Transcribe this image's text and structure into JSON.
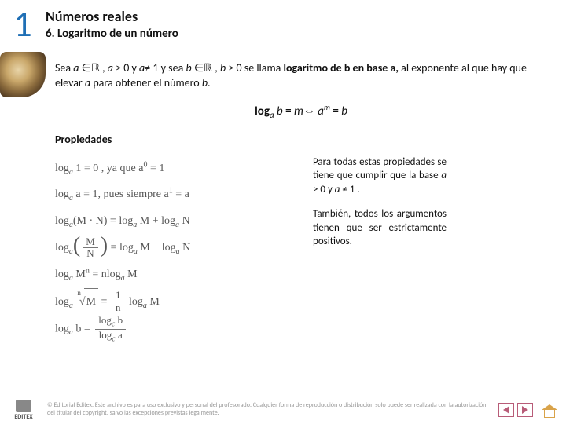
{
  "header": {
    "chapter_number": "1",
    "title": "Números reales",
    "subtitle": "6. Logaritmo de un número"
  },
  "intro": {
    "t1": "Sea ",
    "a": "a",
    "in1": " ∈ℝ , ",
    "cond_a": "a",
    "t2": " > 0 y ",
    "cond_a2": "a",
    "t3": "≠ 1 y sea ",
    "b": "b",
    "in2": "  ∈ℝ  , ",
    "cond_b": "b",
    "t4": " > 0 se llama ",
    "bold": "logaritmo de b en base a,",
    "t5": " al exponente al que hay que elevar ",
    "a2": "a",
    "t6": " para obtener el número ",
    "b2": "b",
    "t7": "."
  },
  "formula": {
    "log": "log",
    "base": "a",
    "sp1": " ",
    "arg": "b",
    "eq1": " = ",
    "m": "m",
    "iff": "⇔ ",
    "a": "a",
    "exp": "m",
    "eq2": " = ",
    "res": "b"
  },
  "properties": {
    "heading": "Propiedades",
    "left": {
      "r1_a": "log",
      "r1_sub": "a",
      "r1_b": " 1 = 0 , ya que  ",
      "r1_c": "a",
      "r1_sup0": "0",
      "r1_d": " = 1",
      "r2_a": "log",
      "r2_sub": "a",
      "r2_b": " ",
      "r2_c": "a",
      "r2_d": " = 1, pues siempre  ",
      "r2_e": "a",
      "r2_sup1": "1",
      "r2_f": " = ",
      "r2_g": "a",
      "r3_a": "log",
      "r3_sub": "a",
      "r3_b": "(M · N) = log",
      "r3_sub2": "a",
      "r3_c": " M + log",
      "r3_sub3": "a",
      "r3_d": " N",
      "r4_a": "log",
      "r4_sub": "a",
      "r4_num": "M",
      "r4_den": "N",
      "r4_b": " = log",
      "r4_sub2": "a",
      "r4_c": " M − log",
      "r4_sub3": "a",
      "r4_d": " N",
      "r5_a": "log",
      "r5_sub": "a",
      "r5_b": " M",
      "r5_sup": "n",
      "r5_c": " = ",
      "r5_d": "n",
      "r5_e": "log",
      "r5_sub2": "a",
      "r5_f": " M",
      "r6_a": "log",
      "r6_sub": "a",
      "r6_idx": "n",
      "r6_rad": "M",
      "r6_b": " = ",
      "r6_num": "1",
      "r6_den": "n",
      "r6_c": " log",
      "r6_sub2": "a",
      "r6_d": " M",
      "r7_a": "log",
      "r7_sub": "a",
      "r7_b": " b = ",
      "r7_num": "log",
      "r7_numsub": "c",
      "r7_numb": " b",
      "r7_den": "log",
      "r7_densub": "c",
      "r7_denb": " a"
    },
    "right": {
      "p1a": "Para todas estas propiedades se tiene que cumplir que la base ",
      "p1b": "a",
      "p1c": " > 0 y ",
      "p1d": "a",
      "p1e": " ≠ 1 .",
      "p2": "También, todos los argumentos tienen que ser estrictamente positivos."
    }
  },
  "footer": {
    "logo": "EDITEX",
    "copyright": "© Editorial Editex. Este archivo es para uso exclusivo y personal del profesorado. Cualquier forma de reproducción o distribución solo puede ser realizada con la autorización del titular del copyright, salvo las excepciones previstas legalmente."
  },
  "colors": {
    "chapter_number": "#1f6fb5",
    "nav_border": "#b85c78",
    "home": "#d9a34a",
    "text": "#111111",
    "muted": "#999999"
  }
}
